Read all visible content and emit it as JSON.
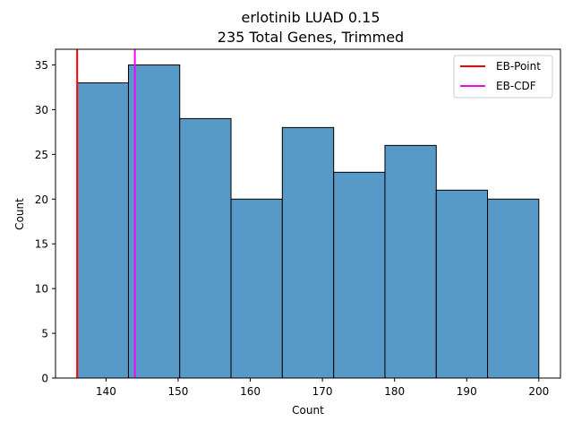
{
  "chart_data": {
    "type": "bar",
    "title_line1": "erlotinib LUAD 0.15",
    "title_line2": "235 Total Genes, Trimmed",
    "xlabel": "Count",
    "ylabel": "Count",
    "bin_edges": [
      136,
      143.11,
      150.22,
      157.33,
      164.44,
      171.56,
      178.67,
      185.78,
      192.89,
      200
    ],
    "values": [
      33,
      35,
      29,
      20,
      28,
      23,
      26,
      21,
      20
    ],
    "xlim": [
      133,
      203
    ],
    "ylim": [
      0,
      36.75
    ],
    "xticks": [
      140,
      150,
      160,
      170,
      180,
      190,
      200
    ],
    "yticks": [
      0,
      5,
      10,
      15,
      20,
      25,
      30,
      35
    ],
    "vlines": [
      {
        "name": "EB-Point",
        "x": 136,
        "color": "#ff0000"
      },
      {
        "name": "EB-CDF",
        "x": 144,
        "color": "#ff00ff"
      }
    ],
    "bar_color": "#5799c7",
    "legend_position": "top-right",
    "grid": false
  }
}
